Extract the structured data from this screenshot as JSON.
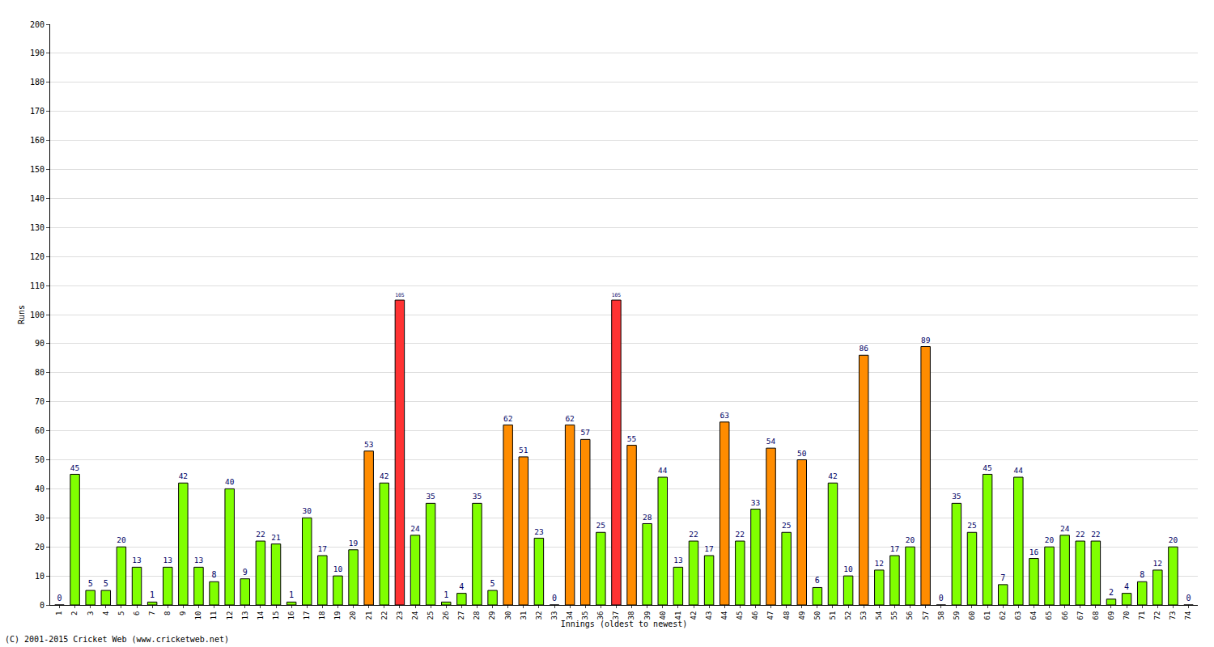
{
  "chart_data": {
    "type": "bar",
    "x_label": "Innings (oldest to newest)",
    "y_label": "Runs",
    "annotation": "(C) 2001-2015 Cricket Web (www.cricketweb.net)",
    "categories": [
      "1",
      "2",
      "3",
      "4",
      "5",
      "6",
      "7",
      "8",
      "9",
      "10",
      "11",
      "12",
      "13",
      "14",
      "15",
      "16",
      "17",
      "18",
      "19",
      "20",
      "21",
      "22",
      "23",
      "24",
      "25",
      "26",
      "27",
      "28",
      "29",
      "30",
      "31",
      "32",
      "33",
      "34",
      "35",
      "36",
      "37",
      "38",
      "39",
      "40",
      "41",
      "42",
      "43",
      "44",
      "45",
      "46",
      "47",
      "48",
      "49",
      "50",
      "51",
      "52",
      "53",
      "54",
      "55",
      "56",
      "57",
      "58",
      "59",
      "60",
      "61",
      "62",
      "63",
      "64",
      "65",
      "66",
      "67",
      "68",
      "69",
      "70",
      "71",
      "72",
      "73",
      "74"
    ],
    "values": [
      0,
      45,
      5,
      5,
      20,
      13,
      1,
      13,
      42,
      13,
      8,
      40,
      9,
      22,
      21,
      1,
      30,
      17,
      10,
      19,
      53,
      42,
      105,
      24,
      35,
      1,
      4,
      35,
      5,
      62,
      51,
      23,
      0,
      62,
      57,
      25,
      105,
      55,
      28,
      44,
      13,
      22,
      17,
      63,
      22,
      33,
      54,
      25,
      50,
      6,
      42,
      10,
      86,
      12,
      17,
      20,
      89,
      0,
      35,
      25,
      45,
      7,
      44,
      16,
      20,
      24,
      22,
      22,
      2,
      4,
      8,
      12,
      20,
      0
    ],
    "colors": [
      "#80ff00",
      "#80ff00",
      "#80ff00",
      "#80ff00",
      "#80ff00",
      "#80ff00",
      "#80ff00",
      "#80ff00",
      "#80ff00",
      "#80ff00",
      "#80ff00",
      "#80ff00",
      "#80ff00",
      "#80ff00",
      "#80ff00",
      "#80ff00",
      "#80ff00",
      "#80ff00",
      "#80ff00",
      "#80ff00",
      "#ff8c00",
      "#80ff00",
      "#ff3333",
      "#80ff00",
      "#80ff00",
      "#80ff00",
      "#80ff00",
      "#80ff00",
      "#80ff00",
      "#ff8c00",
      "#ff8c00",
      "#80ff00",
      "#80ff00",
      "#ff8c00",
      "#ff8c00",
      "#80ff00",
      "#ff3333",
      "#ff8c00",
      "#80ff00",
      "#80ff00",
      "#80ff00",
      "#80ff00",
      "#80ff00",
      "#ff8c00",
      "#80ff00",
      "#80ff00",
      "#ff8c00",
      "#80ff00",
      "#ff8c00",
      "#80ff00",
      "#80ff00",
      "#80ff00",
      "#ff8c00",
      "#80ff00",
      "#80ff00",
      "#80ff00",
      "#ff8c00",
      "#80ff00",
      "#80ff00",
      "#80ff00",
      "#80ff00",
      "#80ff00",
      "#80ff00",
      "#80ff00",
      "#80ff00",
      "#80ff00",
      "#80ff00",
      "#80ff00",
      "#80ff00",
      "#80ff00",
      "#80ff00",
      "#80ff00",
      "#80ff00",
      "#80ff00"
    ],
    "ylim": [
      0,
      200
    ],
    "yticks": [
      0,
      10,
      20,
      30,
      40,
      50,
      60,
      70,
      80,
      90,
      100,
      110,
      120,
      130,
      140,
      150,
      160,
      170,
      180,
      190,
      200
    ],
    "grid": true,
    "data_labels": true
  }
}
